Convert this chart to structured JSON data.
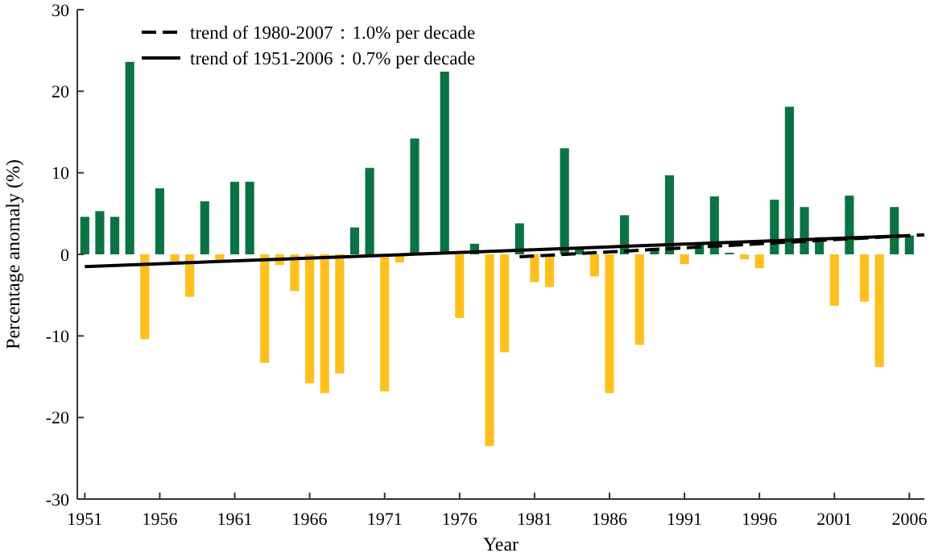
{
  "chart_data": {
    "type": "bar",
    "xlabel": "Year",
    "ylabel": "Percentage anomaly (%)",
    "x": [
      1951,
      1952,
      1953,
      1954,
      1955,
      1956,
      1957,
      1958,
      1959,
      1960,
      1961,
      1962,
      1963,
      1964,
      1965,
      1966,
      1967,
      1968,
      1969,
      1970,
      1971,
      1972,
      1973,
      1974,
      1975,
      1976,
      1977,
      1978,
      1979,
      1980,
      1981,
      1982,
      1983,
      1984,
      1985,
      1986,
      1987,
      1988,
      1989,
      1990,
      1991,
      1992,
      1993,
      1994,
      1995,
      1996,
      1997,
      1998,
      1999,
      2000,
      2001,
      2002,
      2003,
      2004,
      2005,
      2006
    ],
    "series": [
      {
        "values": [
          4.6,
          5.3,
          4.6,
          23.6,
          -10.4,
          8.1,
          -1.3,
          -5.2,
          6.5,
          -1.0,
          8.9,
          8.9,
          -13.3,
          -1.3,
          -4.5,
          -15.8,
          -17.0,
          -14.6,
          3.3,
          10.6,
          -16.8,
          -1.0,
          14.2,
          0,
          22.4,
          -7.8,
          1.3,
          -23.5,
          -12.0,
          3.8,
          -3.4,
          -4.0,
          13.0,
          0.8,
          -2.7,
          -17.0,
          4.8,
          -11.1,
          0.6,
          9.7,
          -1.2,
          1.3,
          7.1,
          0.2,
          -0.6,
          -1.7,
          6.7,
          18.1,
          5.8,
          2.1,
          -6.3,
          7.2,
          -5.8,
          -13.8,
          5.8,
          2.3
        ],
        "colors": [
          "#0b7343",
          "#0b7343",
          "#0b7343",
          "#0b7343",
          "#ffc01e",
          "#0b7343",
          "#ffc01e",
          "#ffc01e",
          "#0b7343",
          "#ffc01e",
          "#0b7343",
          "#0b7343",
          "#ffc01e",
          "#ffc01e",
          "#ffc01e",
          "#ffc01e",
          "#ffc01e",
          "#ffc01e",
          "#0b7343",
          "#0b7343",
          "#ffc01e",
          "#ffc01e",
          "#0b7343",
          "#0b7343",
          "#0b7343",
          "#ffc01e",
          "#0b7343",
          "#ffc01e",
          "#ffc01e",
          "#0b7343",
          "#ffc01e",
          "#ffc01e",
          "#0b7343",
          "#0b7343",
          "#ffc01e",
          "#ffc01e",
          "#0b7343",
          "#ffc01e",
          "#0b7343",
          "#0b7343",
          "#ffc01e",
          "#0b7343",
          "#0b7343",
          "#0b7343",
          "#ffc01e",
          "#ffc01e",
          "#0b7343",
          "#0b7343",
          "#0b7343",
          "#0b7343",
          "#ffc01e",
          "#0b7343",
          "#ffc01e",
          "#ffc01e",
          "#0b7343",
          "#0b7343"
        ]
      },
      {
        "type": "line",
        "name": "trend of 1980-2007：1.0% per decade",
        "color": "#000000",
        "line_style": "dashed",
        "x": [
          1980,
          2007
        ],
        "values": [
          -0.3,
          2.4
        ]
      },
      {
        "type": "line",
        "name": "trend of 1951-2006：0.7% per decade",
        "color": "#000000",
        "line_style": "solid",
        "x": [
          1951,
          2006
        ],
        "values": [
          -1.5,
          2.3
        ]
      }
    ],
    "xlim": [
      1950.5,
      2007
    ],
    "xticks": [
      1951,
      1956,
      1961,
      1966,
      1971,
      1976,
      1981,
      1986,
      1991,
      1996,
      2001,
      2006
    ],
    "ylim": [
      -30,
      30
    ],
    "yticks": [
      -30,
      -20,
      -10,
      0,
      10,
      20,
      30
    ],
    "grid": false,
    "legend": "top left"
  }
}
